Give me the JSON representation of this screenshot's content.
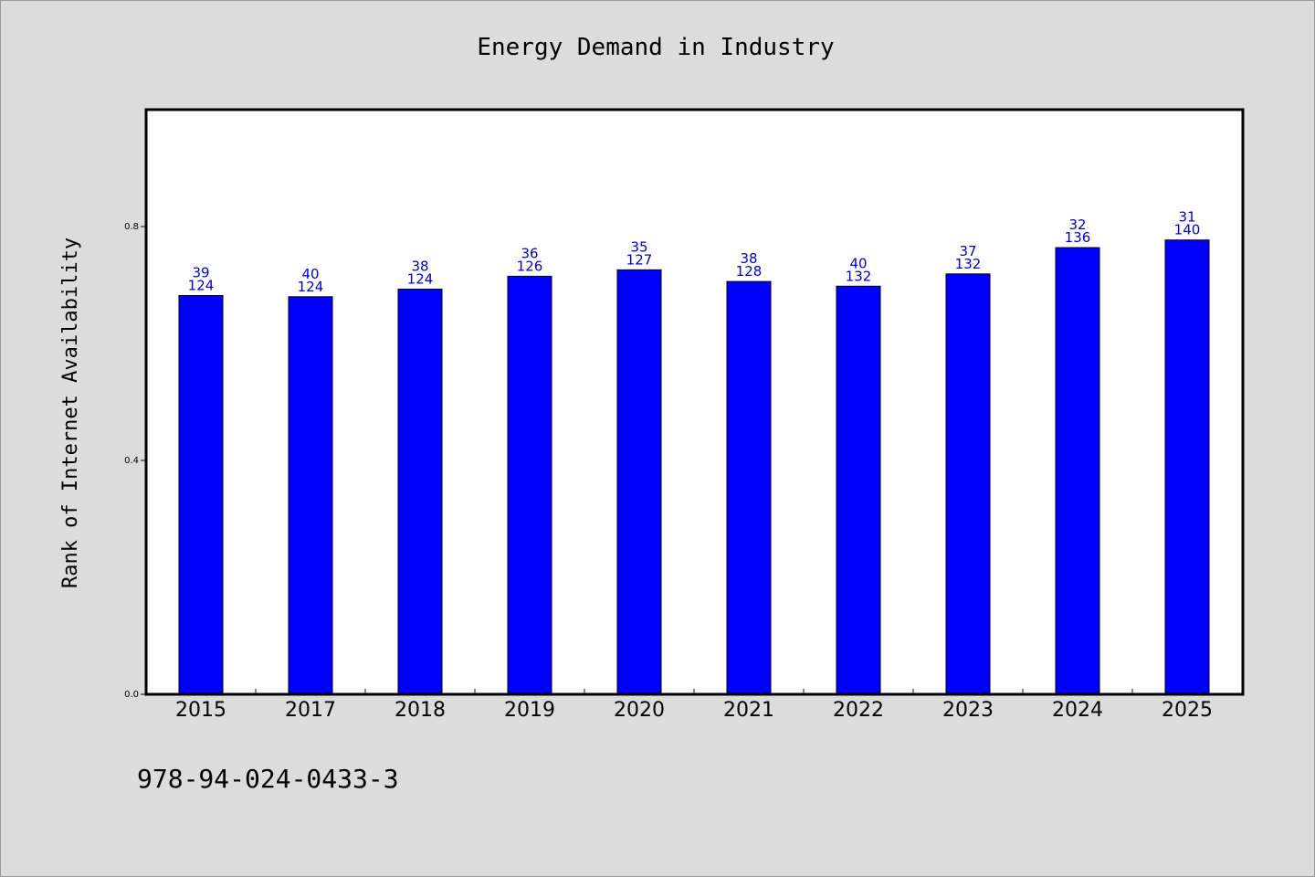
{
  "chart_data": {
    "type": "bar",
    "title": "Energy Demand in Industry",
    "xlabel": "",
    "ylabel": "Rank of Internet Availability",
    "categories": [
      "2015",
      "2017",
      "2018",
      "2019",
      "2020",
      "2021",
      "2022",
      "2023",
      "2024",
      "2025"
    ],
    "values": [
      0.682,
      0.68,
      0.693,
      0.715,
      0.726,
      0.706,
      0.698,
      0.719,
      0.764,
      0.777
    ],
    "labels_top": [
      "39",
      "40",
      "38",
      "36",
      "35",
      "38",
      "40",
      "37",
      "32",
      "31"
    ],
    "labels_bottom": [
      "124",
      "124",
      "124",
      "126",
      "127",
      "128",
      "132",
      "132",
      "136",
      "140"
    ],
    "ylim": [
      0,
      1.0
    ],
    "yticks": [
      0.0,
      0.4,
      0.8
    ],
    "ytick_labels": [
      "0.0",
      "0.4",
      "0.8"
    ],
    "grid": false,
    "legend": "none",
    "bar_color": "#0000ff",
    "label_color": "#0000cc"
  },
  "footer": {
    "isbn": "978-94-024-0433-3"
  }
}
